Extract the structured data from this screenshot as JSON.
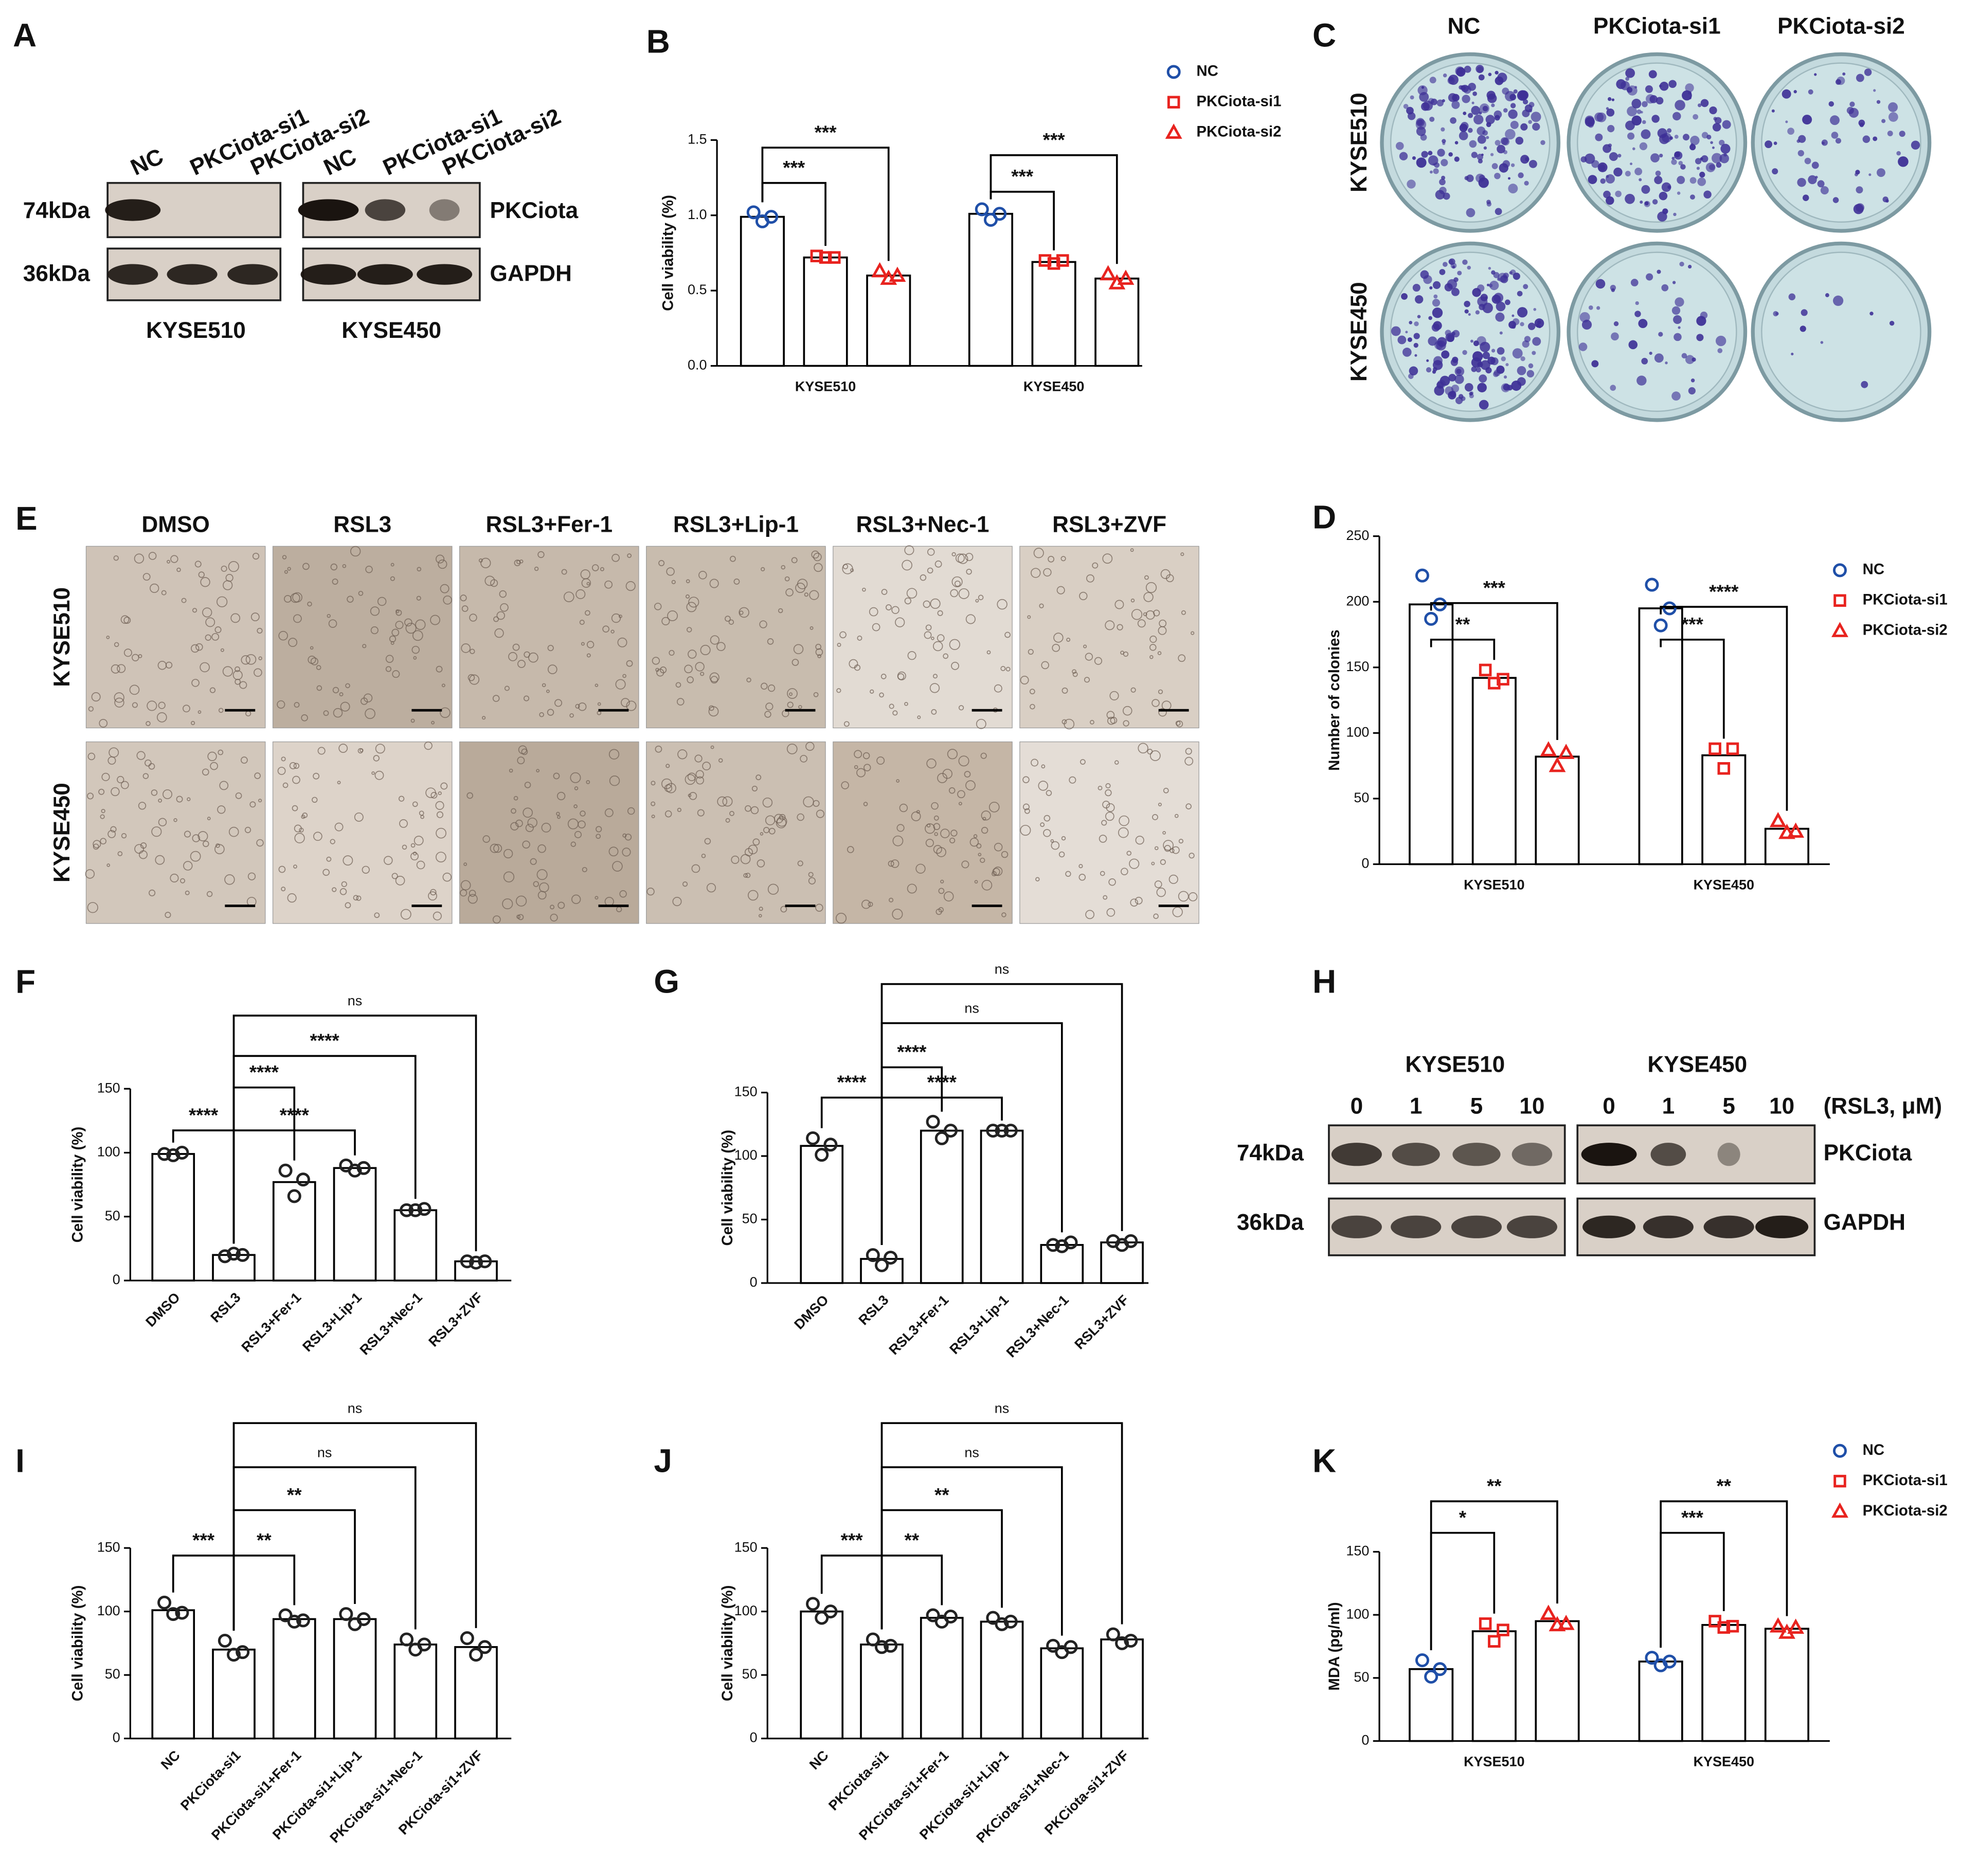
{
  "panel_a": {
    "letter": "A",
    "lanes": [
      "NC",
      "PKCiota-si1",
      "PKCiota-si2",
      "NC",
      "PKCiota-si1",
      "PKCiota-si2"
    ],
    "markers": [
      "74kDa",
      "36kDa"
    ],
    "proteins": [
      "PKCiota",
      "GAPDH"
    ],
    "cell_lines": [
      "KYSE510",
      "KYSE450"
    ]
  },
  "panel_c": {
    "letter": "C",
    "columns": [
      "NC",
      "PKCiota-si1",
      "PKCiota-si2"
    ],
    "rows": [
      "KYSE510",
      "KYSE450"
    ]
  },
  "panel_e": {
    "letter": "E",
    "columns": [
      "DMSO",
      "RSL3",
      "RSL3+Fer-1",
      "RSL3+Lip-1",
      "RSL3+Nec-1",
      "RSL3+ZVF"
    ],
    "rows": [
      "KYSE510",
      "KYSE450"
    ]
  },
  "panel_h": {
    "letter": "H",
    "cell_lines": [
      "KYSE510",
      "KYSE450"
    ],
    "doses": [
      0,
      1,
      5,
      10,
      0,
      1,
      5,
      10
    ],
    "dose_unit": "(RSL3, μM)",
    "markers": [
      "74kDa",
      "36kDa"
    ],
    "proteins": [
      "PKCiota",
      "GAPDH"
    ]
  },
  "chart_data": [
    {
      "type": "bar",
      "letter": "B",
      "ylabel": "Cell viability (%)",
      "categories": [
        "KYSE510",
        "KYSE450"
      ],
      "series": [
        {
          "name": "NC",
          "color": "#1f4fa8",
          "marker": "circle",
          "values": [
            0.99,
            1.01
          ],
          "points": [
            [
              1.02,
              0.96,
              0.99
            ],
            [
              1.04,
              0.97,
              1.01
            ]
          ]
        },
        {
          "name": "PKCiota-si1",
          "color": "#e8231f",
          "marker": "square",
          "values": [
            0.72,
            0.69
          ],
          "points": [
            [
              0.73,
              0.72,
              0.72
            ],
            [
              0.7,
              0.68,
              0.7
            ]
          ]
        },
        {
          "name": "PKCiota-si2",
          "color": "#e8231f",
          "marker": "triangle",
          "values": [
            0.6,
            0.58
          ],
          "points": [
            [
              0.63,
              0.58,
              0.6
            ],
            [
              0.61,
              0.55,
              0.58
            ]
          ]
        }
      ],
      "ylim": [
        0,
        1.5
      ],
      "yticks": [
        {
          "value": 0,
          "label": "0.0"
        },
        0.5,
        {
          "value": 1,
          "label": "1.0"
        },
        1.5
      ],
      "legend": "right",
      "annotations": [
        {
          "text": "***",
          "category": 0,
          "between": [
            0,
            1
          ]
        },
        {
          "text": "***",
          "category": 0,
          "between": [
            0,
            2
          ]
        },
        {
          "text": "***",
          "category": 1,
          "between": [
            0,
            1
          ]
        },
        {
          "text": "***",
          "category": 1,
          "between": [
            0,
            2
          ]
        }
      ]
    },
    {
      "type": "bar",
      "letter": "D",
      "ylabel": "Number of colonies",
      "categories": [
        "KYSE510",
        "KYSE450"
      ],
      "series": [
        {
          "name": "NC",
          "color": "#1f4fa8",
          "marker": "circle",
          "values": [
            198,
            195
          ],
          "points": [
            [
              220,
              187,
              198
            ],
            [
              213,
              182,
              195
            ]
          ]
        },
        {
          "name": "PKCiota-si1",
          "color": "#e8231f",
          "marker": "square",
          "values": [
            142,
            83
          ],
          "points": [
            [
              148,
              138,
              141
            ],
            [
              88,
              73,
              88
            ]
          ]
        },
        {
          "name": "PKCiota-si2",
          "color": "#e8231f",
          "marker": "triangle",
          "values": [
            82,
            27
          ],
          "points": [
            [
              87,
              75,
              85
            ],
            [
              33,
              24,
              25
            ]
          ]
        }
      ],
      "ylim": [
        0,
        250
      ],
      "yticks": [
        0,
        50,
        100,
        150,
        200,
        250
      ],
      "legend": "right",
      "annotations": [
        {
          "text": "**",
          "category": 0,
          "between": [
            0,
            1
          ]
        },
        {
          "text": "***",
          "category": 0,
          "between": [
            0,
            2
          ]
        },
        {
          "text": "***",
          "category": 1,
          "between": [
            0,
            1
          ]
        },
        {
          "text": "****",
          "category": 1,
          "between": [
            0,
            2
          ]
        }
      ]
    },
    {
      "type": "bar",
      "letter": "F",
      "ylabel": "Cell viability (%)",
      "categories": [
        "DMSO",
        "RSL3",
        "RSL3+Fer-1",
        "RSL3+Lip-1",
        "RSL3+Nec-1",
        "RSL3+ZVF"
      ],
      "values": [
        99,
        20,
        77,
        88,
        55,
        15
      ],
      "points": [
        [
          99,
          98,
          100
        ],
        [
          19,
          21,
          20
        ],
        [
          86,
          66,
          79
        ],
        [
          90,
          86,
          88
        ],
        [
          55,
          55,
          56
        ],
        [
          15,
          14,
          15
        ]
      ],
      "ylim": [
        0,
        150
      ],
      "yticks": [
        0,
        50,
        100,
        150
      ],
      "annotations": [
        {
          "text": "****",
          "between": [
            0,
            1
          ]
        },
        {
          "text": "****",
          "between": [
            1,
            2
          ]
        },
        {
          "text": "****",
          "between": [
            1,
            3
          ]
        },
        {
          "text": "****",
          "between": [
            1,
            4
          ]
        },
        {
          "text": "ns",
          "between": [
            1,
            5
          ]
        }
      ]
    },
    {
      "type": "bar",
      "letter": "G",
      "ylabel": "Cell viability (%)",
      "categories": [
        "DMSO",
        "RSL3",
        "RSL3+Fer-1",
        "RSL3+Lip-1",
        "RSL3+Nec-1",
        "RSL3+ZVF"
      ],
      "values": [
        108,
        19,
        120,
        120,
        30,
        32
      ],
      "points": [
        [
          114,
          101,
          109
        ],
        [
          22,
          14,
          20
        ],
        [
          127,
          114,
          120
        ],
        [
          120,
          120,
          120
        ],
        [
          30,
          29,
          32
        ],
        [
          33,
          30,
          33
        ]
      ],
      "ylim": [
        0,
        150
      ],
      "yticks": [
        0,
        50,
        100,
        150
      ],
      "annotations": [
        {
          "text": "****",
          "between": [
            0,
            1
          ]
        },
        {
          "text": "****",
          "between": [
            1,
            2
          ]
        },
        {
          "text": "****",
          "between": [
            1,
            3
          ]
        },
        {
          "text": "ns",
          "between": [
            1,
            4
          ]
        },
        {
          "text": "ns",
          "between": [
            1,
            5
          ]
        }
      ]
    },
    {
      "type": "bar",
      "letter": "I",
      "ylabel": "Cell viability (%)",
      "categories": [
        "NC",
        "PKCiota-si1",
        "PKCiota-si1+Fer-1",
        "PKCiota-si1+Lip-1",
        "PKCiota-si1+Nec-1",
        "PKCiota-si1+ZVF"
      ],
      "values": [
        101,
        70,
        94,
        94,
        74,
        72
      ],
      "points": [
        [
          107,
          98,
          99
        ],
        [
          77,
          66,
          68
        ],
        [
          97,
          92,
          93
        ],
        [
          98,
          90,
          94
        ],
        [
          78,
          70,
          74
        ],
        [
          79,
          66,
          72
        ]
      ],
      "ylim": [
        0,
        150
      ],
      "yticks": [
        0,
        50,
        100,
        150
      ],
      "annotations": [
        {
          "text": "***",
          "between": [
            0,
            1
          ]
        },
        {
          "text": "**",
          "between": [
            1,
            2
          ]
        },
        {
          "text": "**",
          "between": [
            1,
            3
          ]
        },
        {
          "text": "ns",
          "between": [
            1,
            4
          ]
        },
        {
          "text": "ns",
          "between": [
            1,
            5
          ]
        }
      ]
    },
    {
      "type": "bar",
      "letter": "J",
      "ylabel": "Cell viability (%)",
      "categories": [
        "NC",
        "PKCiota-si1",
        "PKCiota-si1+Fer-1",
        "PKCiota-si1+Lip-1",
        "PKCiota-si1+Nec-1",
        "PKCiota-si1+ZVF"
      ],
      "values": [
        100,
        74,
        95,
        92,
        71,
        78
      ],
      "points": [
        [
          106,
          95,
          100
        ],
        [
          78,
          72,
          73
        ],
        [
          97,
          92,
          96
        ],
        [
          95,
          90,
          92
        ],
        [
          73,
          68,
          72
        ],
        [
          82,
          75,
          77
        ]
      ],
      "ylim": [
        0,
        150
      ],
      "yticks": [
        0,
        50,
        100,
        150
      ],
      "annotations": [
        {
          "text": "***",
          "between": [
            0,
            1
          ]
        },
        {
          "text": "**",
          "between": [
            1,
            2
          ]
        },
        {
          "text": "**",
          "between": [
            1,
            3
          ]
        },
        {
          "text": "ns",
          "between": [
            1,
            4
          ]
        },
        {
          "text": "ns",
          "between": [
            1,
            5
          ]
        }
      ]
    },
    {
      "type": "bar",
      "letter": "K",
      "ylabel": "MDA (pg/ml)",
      "categories": [
        "KYSE510",
        "KYSE450"
      ],
      "series": [
        {
          "name": "NC",
          "color": "#1f4fa8",
          "marker": "circle",
          "values": [
            57,
            63
          ],
          "points": [
            [
              64,
              51,
              57
            ],
            [
              66,
              60,
              63
            ]
          ]
        },
        {
          "name": "PKCiota-si1",
          "color": "#e8231f",
          "marker": "square",
          "values": [
            87,
            92
          ],
          "points": [
            [
              93,
              79,
              88
            ],
            [
              95,
              90,
              91
            ]
          ]
        },
        {
          "name": "PKCiota-si2",
          "color": "#e8231f",
          "marker": "triangle",
          "values": [
            95,
            89
          ],
          "points": [
            [
              101,
              92,
              93
            ],
            [
              91,
              86,
              90
            ]
          ]
        }
      ],
      "ylim": [
        0,
        150
      ],
      "yticks": [
        0,
        50,
        100,
        150
      ],
      "legend": "right",
      "annotations": [
        {
          "text": "*",
          "category": 0,
          "between": [
            0,
            1
          ]
        },
        {
          "text": "**",
          "category": 0,
          "between": [
            0,
            2
          ]
        },
        {
          "text": "***",
          "category": 1,
          "between": [
            0,
            1
          ]
        },
        {
          "text": "**",
          "category": 1,
          "between": [
            0,
            2
          ]
        }
      ]
    }
  ]
}
